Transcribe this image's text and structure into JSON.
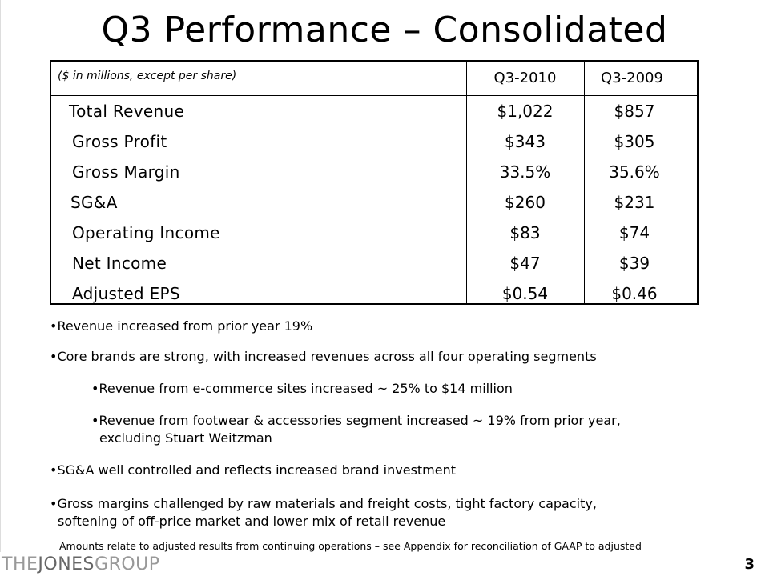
{
  "slide": {
    "title": "Q3 Performance – Consolidated",
    "page_number": "3"
  },
  "table": {
    "note": "($ in millions, except per share)",
    "columns": [
      "Q3-2010",
      "Q3-2009"
    ],
    "rows": [
      {
        "label": "Total Revenue",
        "q3_2010": "$1,022",
        "q3_2009": "$857"
      },
      {
        "label": "Gross Profit",
        "q3_2010": "$343",
        "q3_2009": "$305"
      },
      {
        "label": "Gross Margin",
        "q3_2010": "33.5%",
        "q3_2009": "35.6%"
      },
      {
        "label": "SG&A",
        "q3_2010": "$260",
        "q3_2009": "$231"
      },
      {
        "label": "Operating Income",
        "q3_2010": "$83",
        "q3_2009": "$74"
      },
      {
        "label": "Net Income",
        "q3_2010": "$47",
        "q3_2009": "$39"
      },
      {
        "label": "Adjusted EPS",
        "q3_2010": "$0.54",
        "q3_2009": "$0.46"
      }
    ]
  },
  "bullets": [
    {
      "text": "•Revenue increased from prior year 19%"
    },
    {
      "text": "•Core brands are strong, with increased revenues across all four operating segments"
    },
    {
      "text": "•Revenue from e-commerce sites increased ~ 25% to $14 million"
    },
    {
      "text": "•Revenue from footwear & accessories segment increased ~ 19% from prior year,",
      "cont": "excluding Stuart Weitzman"
    },
    {
      "text": "•SG&A well controlled and reflects increased brand investment"
    },
    {
      "text": "•Gross margins challenged by raw materials and freight costs, tight factory capacity,",
      "cont": "softening of off-price market and lower mix of retail revenue"
    }
  ],
  "footnote": "Amounts relate to adjusted results from continuing operations – see Appendix for reconciliation of GAAP to adjusted",
  "logo": {
    "part1": "THE",
    "part2": "JONES",
    "part3": "GROUP"
  }
}
